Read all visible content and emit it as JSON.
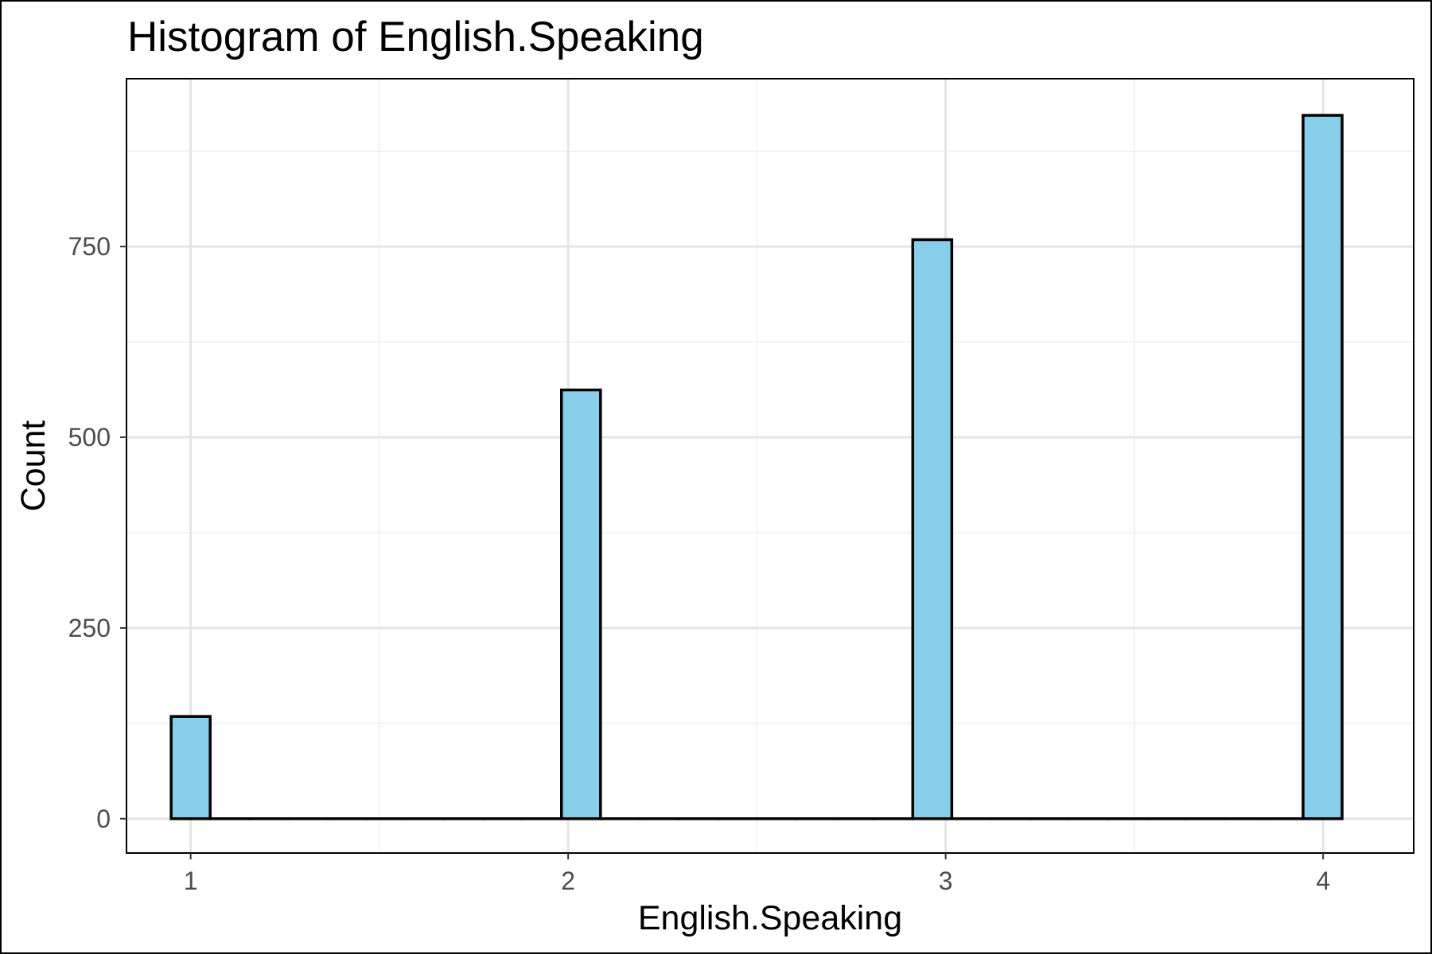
{
  "chart_data": {
    "type": "bar",
    "title": "Histogram of English.Speaking",
    "xlabel": "English.Speaking",
    "ylabel": "Count",
    "x_ticks": [
      "1",
      "2",
      "3",
      "4"
    ],
    "y_ticks": [
      "0",
      "250",
      "500",
      "750"
    ],
    "xlim": [
      0.83,
      4.24
    ],
    "ylim": [
      -45,
      970
    ],
    "bins": [
      {
        "x": 1,
        "value": 134
      },
      {
        "x": 2,
        "value": 562
      },
      {
        "x": 3,
        "value": 759
      },
      {
        "x": 4,
        "value": 922
      }
    ],
    "bin_width": 0.1034,
    "bin_range": [
      1.0,
      4.0
    ],
    "colors": {
      "fill": "#87CEEB",
      "stroke": "#000000",
      "grid_major": "#e5e5e5",
      "grid_minor": "#f0f0f0",
      "panel_border": "#000000"
    },
    "grid": true,
    "legend": "none"
  }
}
